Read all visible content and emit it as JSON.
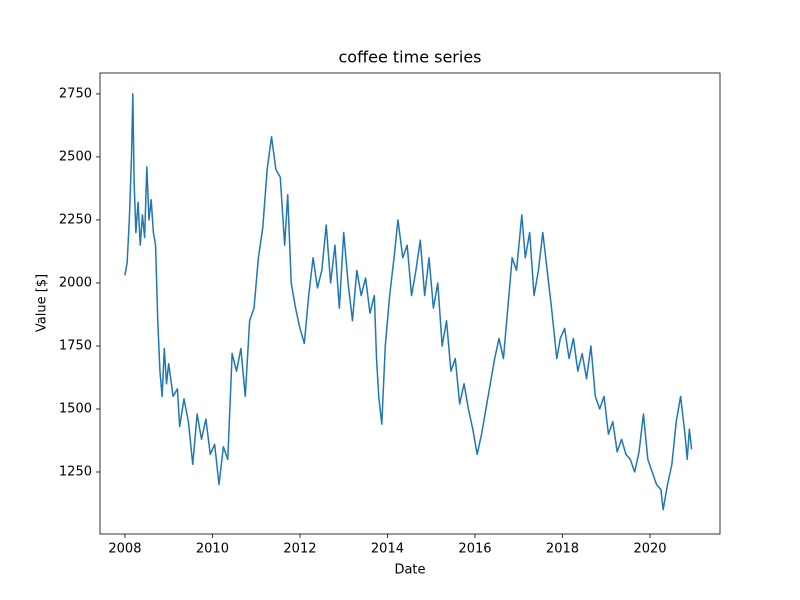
{
  "chart_data": {
    "type": "line",
    "title": "coffee time series",
    "x_label": "Date",
    "y_label": "Value [$]",
    "color": "#1f77b4",
    "xlim": [
      2007.43,
      2021.6
    ],
    "ylim": [
      1004,
      2833
    ],
    "xticks": [
      2008,
      2010,
      2012,
      2014,
      2016,
      2018,
      2020
    ],
    "yticks": [
      1250,
      1500,
      1750,
      2000,
      2250,
      2500,
      2750
    ],
    "x": [
      2008.0,
      2008.05,
      2008.1,
      2008.15,
      2008.18,
      2008.21,
      2008.25,
      2008.3,
      2008.35,
      2008.4,
      2008.45,
      2008.5,
      2008.55,
      2008.6,
      2008.65,
      2008.7,
      2008.75,
      2008.8,
      2008.85,
      2008.9,
      2008.95,
      2009.0,
      2009.1,
      2009.2,
      2009.25,
      2009.35,
      2009.45,
      2009.55,
      2009.65,
      2009.75,
      2009.85,
      2009.95,
      2010.05,
      2010.15,
      2010.25,
      2010.35,
      2010.45,
      2010.55,
      2010.65,
      2010.75,
      2010.85,
      2010.95,
      2011.05,
      2011.15,
      2011.25,
      2011.35,
      2011.45,
      2011.55,
      2011.65,
      2011.72,
      2011.8,
      2011.9,
      2012.0,
      2012.1,
      2012.2,
      2012.3,
      2012.4,
      2012.5,
      2012.6,
      2012.7,
      2012.8,
      2012.9,
      2013.0,
      2013.1,
      2013.2,
      2013.3,
      2013.4,
      2013.5,
      2013.6,
      2013.7,
      2013.75,
      2013.8,
      2013.87,
      2013.95,
      2014.05,
      2014.15,
      2014.24,
      2014.35,
      2014.45,
      2014.55,
      2014.65,
      2014.75,
      2014.85,
      2014.95,
      2015.05,
      2015.15,
      2015.25,
      2015.35,
      2015.45,
      2015.55,
      2015.65,
      2015.75,
      2015.85,
      2015.95,
      2016.05,
      2016.15,
      2016.25,
      2016.35,
      2016.45,
      2016.55,
      2016.65,
      2016.75,
      2016.85,
      2016.95,
      2017.07,
      2017.15,
      2017.25,
      2017.35,
      2017.45,
      2017.55,
      2017.65,
      2017.75,
      2017.87,
      2017.95,
      2018.05,
      2018.15,
      2018.25,
      2018.35,
      2018.45,
      2018.55,
      2018.65,
      2018.75,
      2018.85,
      2018.95,
      2019.05,
      2019.15,
      2019.25,
      2019.35,
      2019.45,
      2019.55,
      2019.65,
      2019.75,
      2019.85,
      2019.95,
      2020.05,
      2020.15,
      2020.25,
      2020.3,
      2020.4,
      2020.5,
      2020.6,
      2020.7,
      2020.8,
      2020.85,
      2020.9,
      2020.95
    ],
    "values": [
      2030,
      2080,
      2250,
      2500,
      2750,
      2400,
      2200,
      2320,
      2150,
      2270,
      2180,
      2460,
      2250,
      2330,
      2200,
      2150,
      1850,
      1650,
      1550,
      1740,
      1600,
      1680,
      1550,
      1580,
      1430,
      1540,
      1450,
      1280,
      1480,
      1380,
      1460,
      1320,
      1360,
      1200,
      1350,
      1300,
      1720,
      1650,
      1740,
      1550,
      1850,
      1900,
      2100,
      2220,
      2450,
      2580,
      2450,
      2420,
      2150,
      2350,
      2000,
      1900,
      1820,
      1760,
      1950,
      2100,
      1980,
      2050,
      2230,
      2000,
      2150,
      1900,
      2200,
      2000,
      1850,
      2050,
      1950,
      2020,
      1880,
      1950,
      1700,
      1550,
      1440,
      1750,
      1950,
      2100,
      2250,
      2100,
      2150,
      1950,
      2050,
      2170,
      1950,
      2100,
      1900,
      2000,
      1750,
      1850,
      1650,
      1700,
      1520,
      1600,
      1500,
      1420,
      1320,
      1400,
      1500,
      1600,
      1700,
      1780,
      1700,
      1900,
      2100,
      2050,
      2270,
      2100,
      2200,
      1950,
      2050,
      2200,
      2050,
      1900,
      1700,
      1780,
      1820,
      1700,
      1780,
      1650,
      1720,
      1620,
      1750,
      1550,
      1500,
      1550,
      1400,
      1450,
      1330,
      1380,
      1320,
      1300,
      1250,
      1330,
      1480,
      1300,
      1250,
      1200,
      1180,
      1100,
      1200,
      1280,
      1450,
      1550,
      1400,
      1300,
      1420,
      1340
    ]
  }
}
